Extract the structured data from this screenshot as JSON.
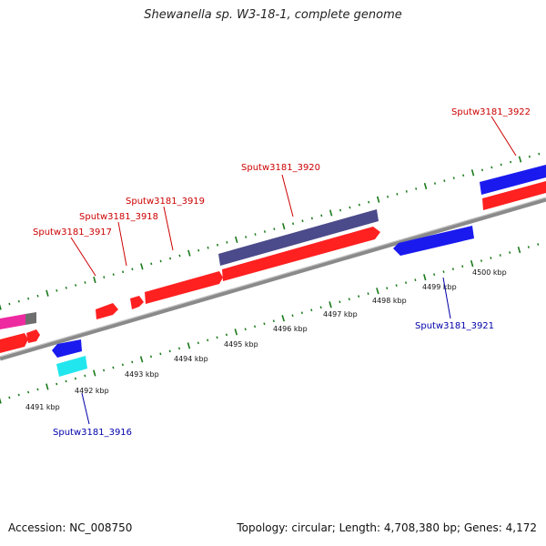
{
  "title": "Shewanella sp. W3-18-1, complete genome",
  "footer": {
    "accession": "Accession: NC_008750",
    "topology": "Topology: circular; Length: 4,708,380 bp; Genes: 4,172"
  },
  "colors": {
    "forward_gene": "#ff2020",
    "reverse_gene": "#1a1aee",
    "label_top": "#cc0000",
    "label_bottom": "#0000aa",
    "tick": "#1a7a1a",
    "backbone": "#888888",
    "highlight_gene": "#4b4a8a",
    "cyan_gene": "#22e6ee",
    "magenta_gene": "#ee2aa0",
    "gray_gene": "#6e6e6e"
  },
  "scale": {
    "unit": "kbp",
    "tick_labels": [
      "4491 kbp",
      "4492 kbp",
      "4493 kbp",
      "4494 kbp",
      "4495 kbp",
      "4496 kbp",
      "4497 kbp",
      "4498 kbp",
      "4499 kbp",
      "4500 kbp"
    ]
  },
  "genes": {
    "top_labels": [
      "Sputw3181_3917",
      "Sputw3181_3918",
      "Sputw3181_3919",
      "Sputw3181_3920",
      "Sputw3181_3922"
    ],
    "bottom_labels": [
      "Sputw3181_3916",
      "Sputw3181_3921"
    ]
  }
}
